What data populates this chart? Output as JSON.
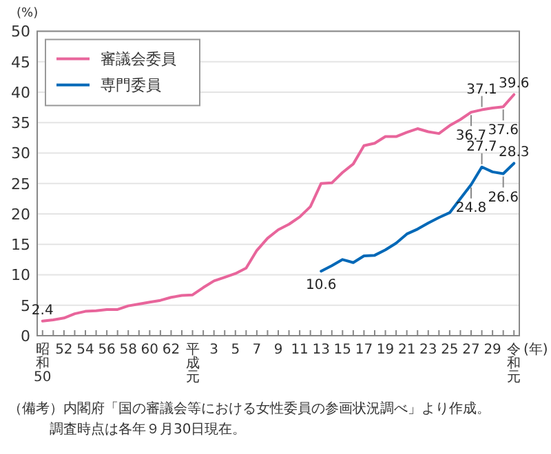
{
  "chart_data": {
    "type": "line",
    "ylabel": "(%)",
    "xlabel": "(年)",
    "categories": [
      "昭和50",
      null,
      "52",
      null,
      "54",
      null,
      "56",
      null,
      "58",
      null,
      "60",
      null,
      "62",
      null,
      "平成元",
      null,
      "3",
      null,
      "5",
      null,
      "7",
      null,
      "9",
      null,
      "11",
      null,
      "13",
      null,
      "15",
      null,
      "17",
      null,
      "19",
      null,
      "21",
      null,
      "23",
      null,
      "25",
      null,
      "27",
      null,
      "29",
      null,
      "令和元"
    ],
    "series": [
      {
        "name": "審議会委員",
        "color": "#e8659b",
        "values": [
          2.4,
          2.6,
          2.9,
          3.6,
          4.0,
          4.1,
          4.3,
          4.3,
          4.9,
          5.2,
          5.5,
          5.8,
          6.3,
          6.6,
          6.7,
          7.9,
          9.0,
          9.6,
          10.2,
          11.1,
          14.0,
          16.0,
          17.4,
          18.3,
          19.5,
          21.2,
          25.0,
          25.1,
          26.8,
          28.2,
          31.2,
          31.6,
          32.7,
          32.7,
          33.4,
          34.0,
          33.5,
          33.2,
          34.5,
          35.5,
          36.7,
          37.1,
          37.4,
          37.6,
          39.6
        ],
        "value_labels": [
          "2.4",
          null,
          null,
          null,
          null,
          null,
          null,
          null,
          null,
          null,
          null,
          null,
          null,
          null,
          null,
          null,
          null,
          null,
          null,
          null,
          null,
          null,
          null,
          null,
          null,
          null,
          null,
          null,
          null,
          null,
          null,
          null,
          null,
          null,
          null,
          null,
          null,
          null,
          null,
          null,
          "36.7",
          "37.1",
          null,
          "37.6",
          "39.6"
        ]
      },
      {
        "name": "専門委員",
        "color": "#0068b7",
        "values": [
          null,
          null,
          null,
          null,
          null,
          null,
          null,
          null,
          null,
          null,
          null,
          null,
          null,
          null,
          null,
          null,
          null,
          null,
          null,
          null,
          null,
          null,
          null,
          null,
          null,
          null,
          10.6,
          11.5,
          12.5,
          12.0,
          13.1,
          13.2,
          14.1,
          15.2,
          16.7,
          17.5,
          18.5,
          19.4,
          20.2,
          22.5,
          24.8,
          27.7,
          26.9,
          26.6,
          28.3
        ],
        "value_labels": [
          null,
          null,
          null,
          null,
          null,
          null,
          null,
          null,
          null,
          null,
          null,
          null,
          null,
          null,
          null,
          null,
          null,
          null,
          null,
          null,
          null,
          null,
          null,
          null,
          null,
          null,
          "10.6",
          null,
          null,
          null,
          null,
          null,
          null,
          null,
          null,
          null,
          null,
          null,
          null,
          null,
          "24.8",
          "27.7",
          null,
          "26.6",
          "28.3"
        ]
      }
    ],
    "ylim": [
      0,
      50
    ],
    "yticks": [
      0,
      5,
      10,
      15,
      20,
      25,
      30,
      35,
      40,
      45,
      50
    ],
    "grid": "y",
    "legend": "top left",
    "annotations": [
      "（備考）内閣府「国の審議会等における女性委員の参画状況調べ」より作成。",
      "調査時点は各年９月30日現在。"
    ]
  }
}
